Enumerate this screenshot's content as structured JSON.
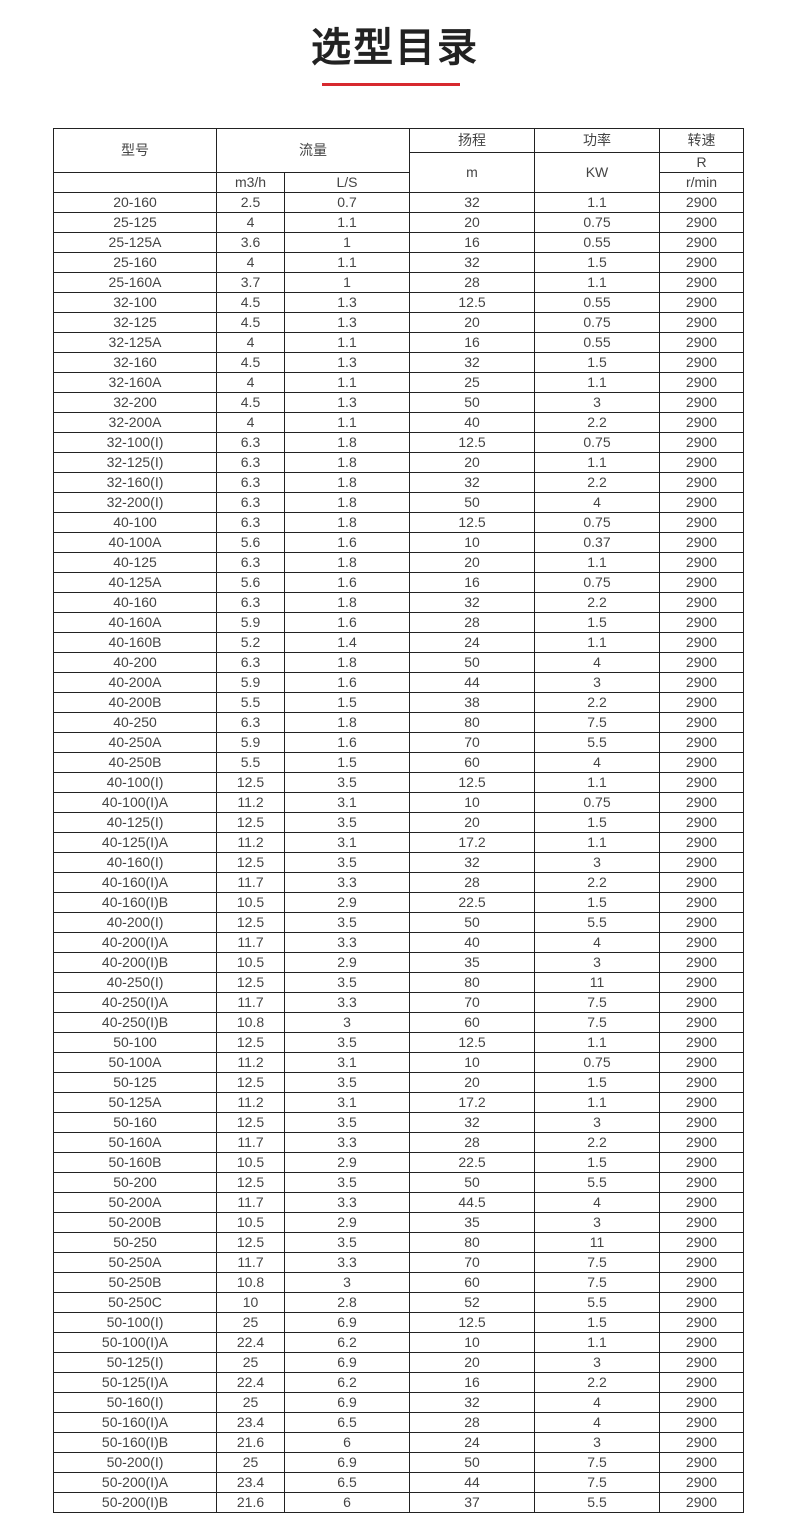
{
  "title": "选型目录",
  "accent_color": "#d7292f",
  "header": {
    "model": "型号",
    "flow": "流量",
    "flow_m3h": "m3/h",
    "flow_ls": "L/S",
    "head": "扬程",
    "head_unit": "m",
    "power": "功率",
    "power_unit": "KW",
    "speed": "转速",
    "speed_r": "R",
    "speed_unit": "r/min"
  },
  "rows": [
    [
      "20-160",
      "2.5",
      "0.7",
      "32",
      "1.1",
      "2900"
    ],
    [
      "25-125",
      "4",
      "1.1",
      "20",
      "0.75",
      "2900"
    ],
    [
      "25-125A",
      "3.6",
      "1",
      "16",
      "0.55",
      "2900"
    ],
    [
      "25-160",
      "4",
      "1.1",
      "32",
      "1.5",
      "2900"
    ],
    [
      "25-160A",
      "3.7",
      "1",
      "28",
      "1.1",
      "2900"
    ],
    [
      "32-100",
      "4.5",
      "1.3",
      "12.5",
      "0.55",
      "2900"
    ],
    [
      "32-125",
      "4.5",
      "1.3",
      "20",
      "0.75",
      "2900"
    ],
    [
      "32-125A",
      "4",
      "1.1",
      "16",
      "0.55",
      "2900"
    ],
    [
      "32-160",
      "4.5",
      "1.3",
      "32",
      "1.5",
      "2900"
    ],
    [
      "32-160A",
      "4",
      "1.1",
      "25",
      "1.1",
      "2900"
    ],
    [
      "32-200",
      "4.5",
      "1.3",
      "50",
      "3",
      "2900"
    ],
    [
      "32-200A",
      "4",
      "1.1",
      "40",
      "2.2",
      "2900"
    ],
    [
      "32-100(I)",
      "6.3",
      "1.8",
      "12.5",
      "0.75",
      "2900"
    ],
    [
      "32-125(I)",
      "6.3",
      "1.8",
      "20",
      "1.1",
      "2900"
    ],
    [
      "32-160(I)",
      "6.3",
      "1.8",
      "32",
      "2.2",
      "2900"
    ],
    [
      "32-200(I)",
      "6.3",
      "1.8",
      "50",
      "4",
      "2900"
    ],
    [
      "40-100",
      "6.3",
      "1.8",
      "12.5",
      "0.75",
      "2900"
    ],
    [
      "40-100A",
      "5.6",
      "1.6",
      "10",
      "0.37",
      "2900"
    ],
    [
      "40-125",
      "6.3",
      "1.8",
      "20",
      "1.1",
      "2900"
    ],
    [
      "40-125A",
      "5.6",
      "1.6",
      "16",
      "0.75",
      "2900"
    ],
    [
      "40-160",
      "6.3",
      "1.8",
      "32",
      "2.2",
      "2900"
    ],
    [
      "40-160A",
      "5.9",
      "1.6",
      "28",
      "1.5",
      "2900"
    ],
    [
      "40-160B",
      "5.2",
      "1.4",
      "24",
      "1.1",
      "2900"
    ],
    [
      "40-200",
      "6.3",
      "1.8",
      "50",
      "4",
      "2900"
    ],
    [
      "40-200A",
      "5.9",
      "1.6",
      "44",
      "3",
      "2900"
    ],
    [
      "40-200B",
      "5.5",
      "1.5",
      "38",
      "2.2",
      "2900"
    ],
    [
      "40-250",
      "6.3",
      "1.8",
      "80",
      "7.5",
      "2900"
    ],
    [
      "40-250A",
      "5.9",
      "1.6",
      "70",
      "5.5",
      "2900"
    ],
    [
      "40-250B",
      "5.5",
      "1.5",
      "60",
      "4",
      "2900"
    ],
    [
      "40-100(I)",
      "12.5",
      "3.5",
      "12.5",
      "1.1",
      "2900"
    ],
    [
      "40-100(I)A",
      "11.2",
      "3.1",
      "10",
      "0.75",
      "2900"
    ],
    [
      "40-125(I)",
      "12.5",
      "3.5",
      "20",
      "1.5",
      "2900"
    ],
    [
      "40-125(I)A",
      "11.2",
      "3.1",
      "17.2",
      "1.1",
      "2900"
    ],
    [
      "40-160(I)",
      "12.5",
      "3.5",
      "32",
      "3",
      "2900"
    ],
    [
      "40-160(I)A",
      "11.7",
      "3.3",
      "28",
      "2.2",
      "2900"
    ],
    [
      "40-160(I)B",
      "10.5",
      "2.9",
      "22.5",
      "1.5",
      "2900"
    ],
    [
      "40-200(I)",
      "12.5",
      "3.5",
      "50",
      "5.5",
      "2900"
    ],
    [
      "40-200(I)A",
      "11.7",
      "3.3",
      "40",
      "4",
      "2900"
    ],
    [
      "40-200(I)B",
      "10.5",
      "2.9",
      "35",
      "3",
      "2900"
    ],
    [
      "40-250(I)",
      "12.5",
      "3.5",
      "80",
      "11",
      "2900"
    ],
    [
      "40-250(I)A",
      "11.7",
      "3.3",
      "70",
      "7.5",
      "2900"
    ],
    [
      "40-250(I)B",
      "10.8",
      "3",
      "60",
      "7.5",
      "2900"
    ],
    [
      "50-100",
      "12.5",
      "3.5",
      "12.5",
      "1.1",
      "2900"
    ],
    [
      "50-100A",
      "11.2",
      "3.1",
      "10",
      "0.75",
      "2900"
    ],
    [
      "50-125",
      "12.5",
      "3.5",
      "20",
      "1.5",
      "2900"
    ],
    [
      "50-125A",
      "11.2",
      "3.1",
      "17.2",
      "1.1",
      "2900"
    ],
    [
      "50-160",
      "12.5",
      "3.5",
      "32",
      "3",
      "2900"
    ],
    [
      "50-160A",
      "11.7",
      "3.3",
      "28",
      "2.2",
      "2900"
    ],
    [
      "50-160B",
      "10.5",
      "2.9",
      "22.5",
      "1.5",
      "2900"
    ],
    [
      "50-200",
      "12.5",
      "3.5",
      "50",
      "5.5",
      "2900"
    ],
    [
      "50-200A",
      "11.7",
      "3.3",
      "44.5",
      "4",
      "2900"
    ],
    [
      "50-200B",
      "10.5",
      "2.9",
      "35",
      "3",
      "2900"
    ],
    [
      "50-250",
      "12.5",
      "3.5",
      "80",
      "11",
      "2900"
    ],
    [
      "50-250A",
      "11.7",
      "3.3",
      "70",
      "7.5",
      "2900"
    ],
    [
      "50-250B",
      "10.8",
      "3",
      "60",
      "7.5",
      "2900"
    ],
    [
      "50-250C",
      "10",
      "2.8",
      "52",
      "5.5",
      "2900"
    ],
    [
      "50-100(I)",
      "25",
      "6.9",
      "12.5",
      "1.5",
      "2900"
    ],
    [
      "50-100(I)A",
      "22.4",
      "6.2",
      "10",
      "1.1",
      "2900"
    ],
    [
      "50-125(I)",
      "25",
      "6.9",
      "20",
      "3",
      "2900"
    ],
    [
      "50-125(I)A",
      "22.4",
      "6.2",
      "16",
      "2.2",
      "2900"
    ],
    [
      "50-160(I)",
      "25",
      "6.9",
      "32",
      "4",
      "2900"
    ],
    [
      "50-160(I)A",
      "23.4",
      "6.5",
      "28",
      "4",
      "2900"
    ],
    [
      "50-160(I)B",
      "21.6",
      "6",
      "24",
      "3",
      "2900"
    ],
    [
      "50-200(I)",
      "25",
      "6.9",
      "50",
      "7.5",
      "2900"
    ],
    [
      "50-200(I)A",
      "23.4",
      "6.5",
      "44",
      "7.5",
      "2900"
    ],
    [
      "50-200(I)B",
      "21.6",
      "6",
      "37",
      "5.5",
      "2900"
    ]
  ]
}
